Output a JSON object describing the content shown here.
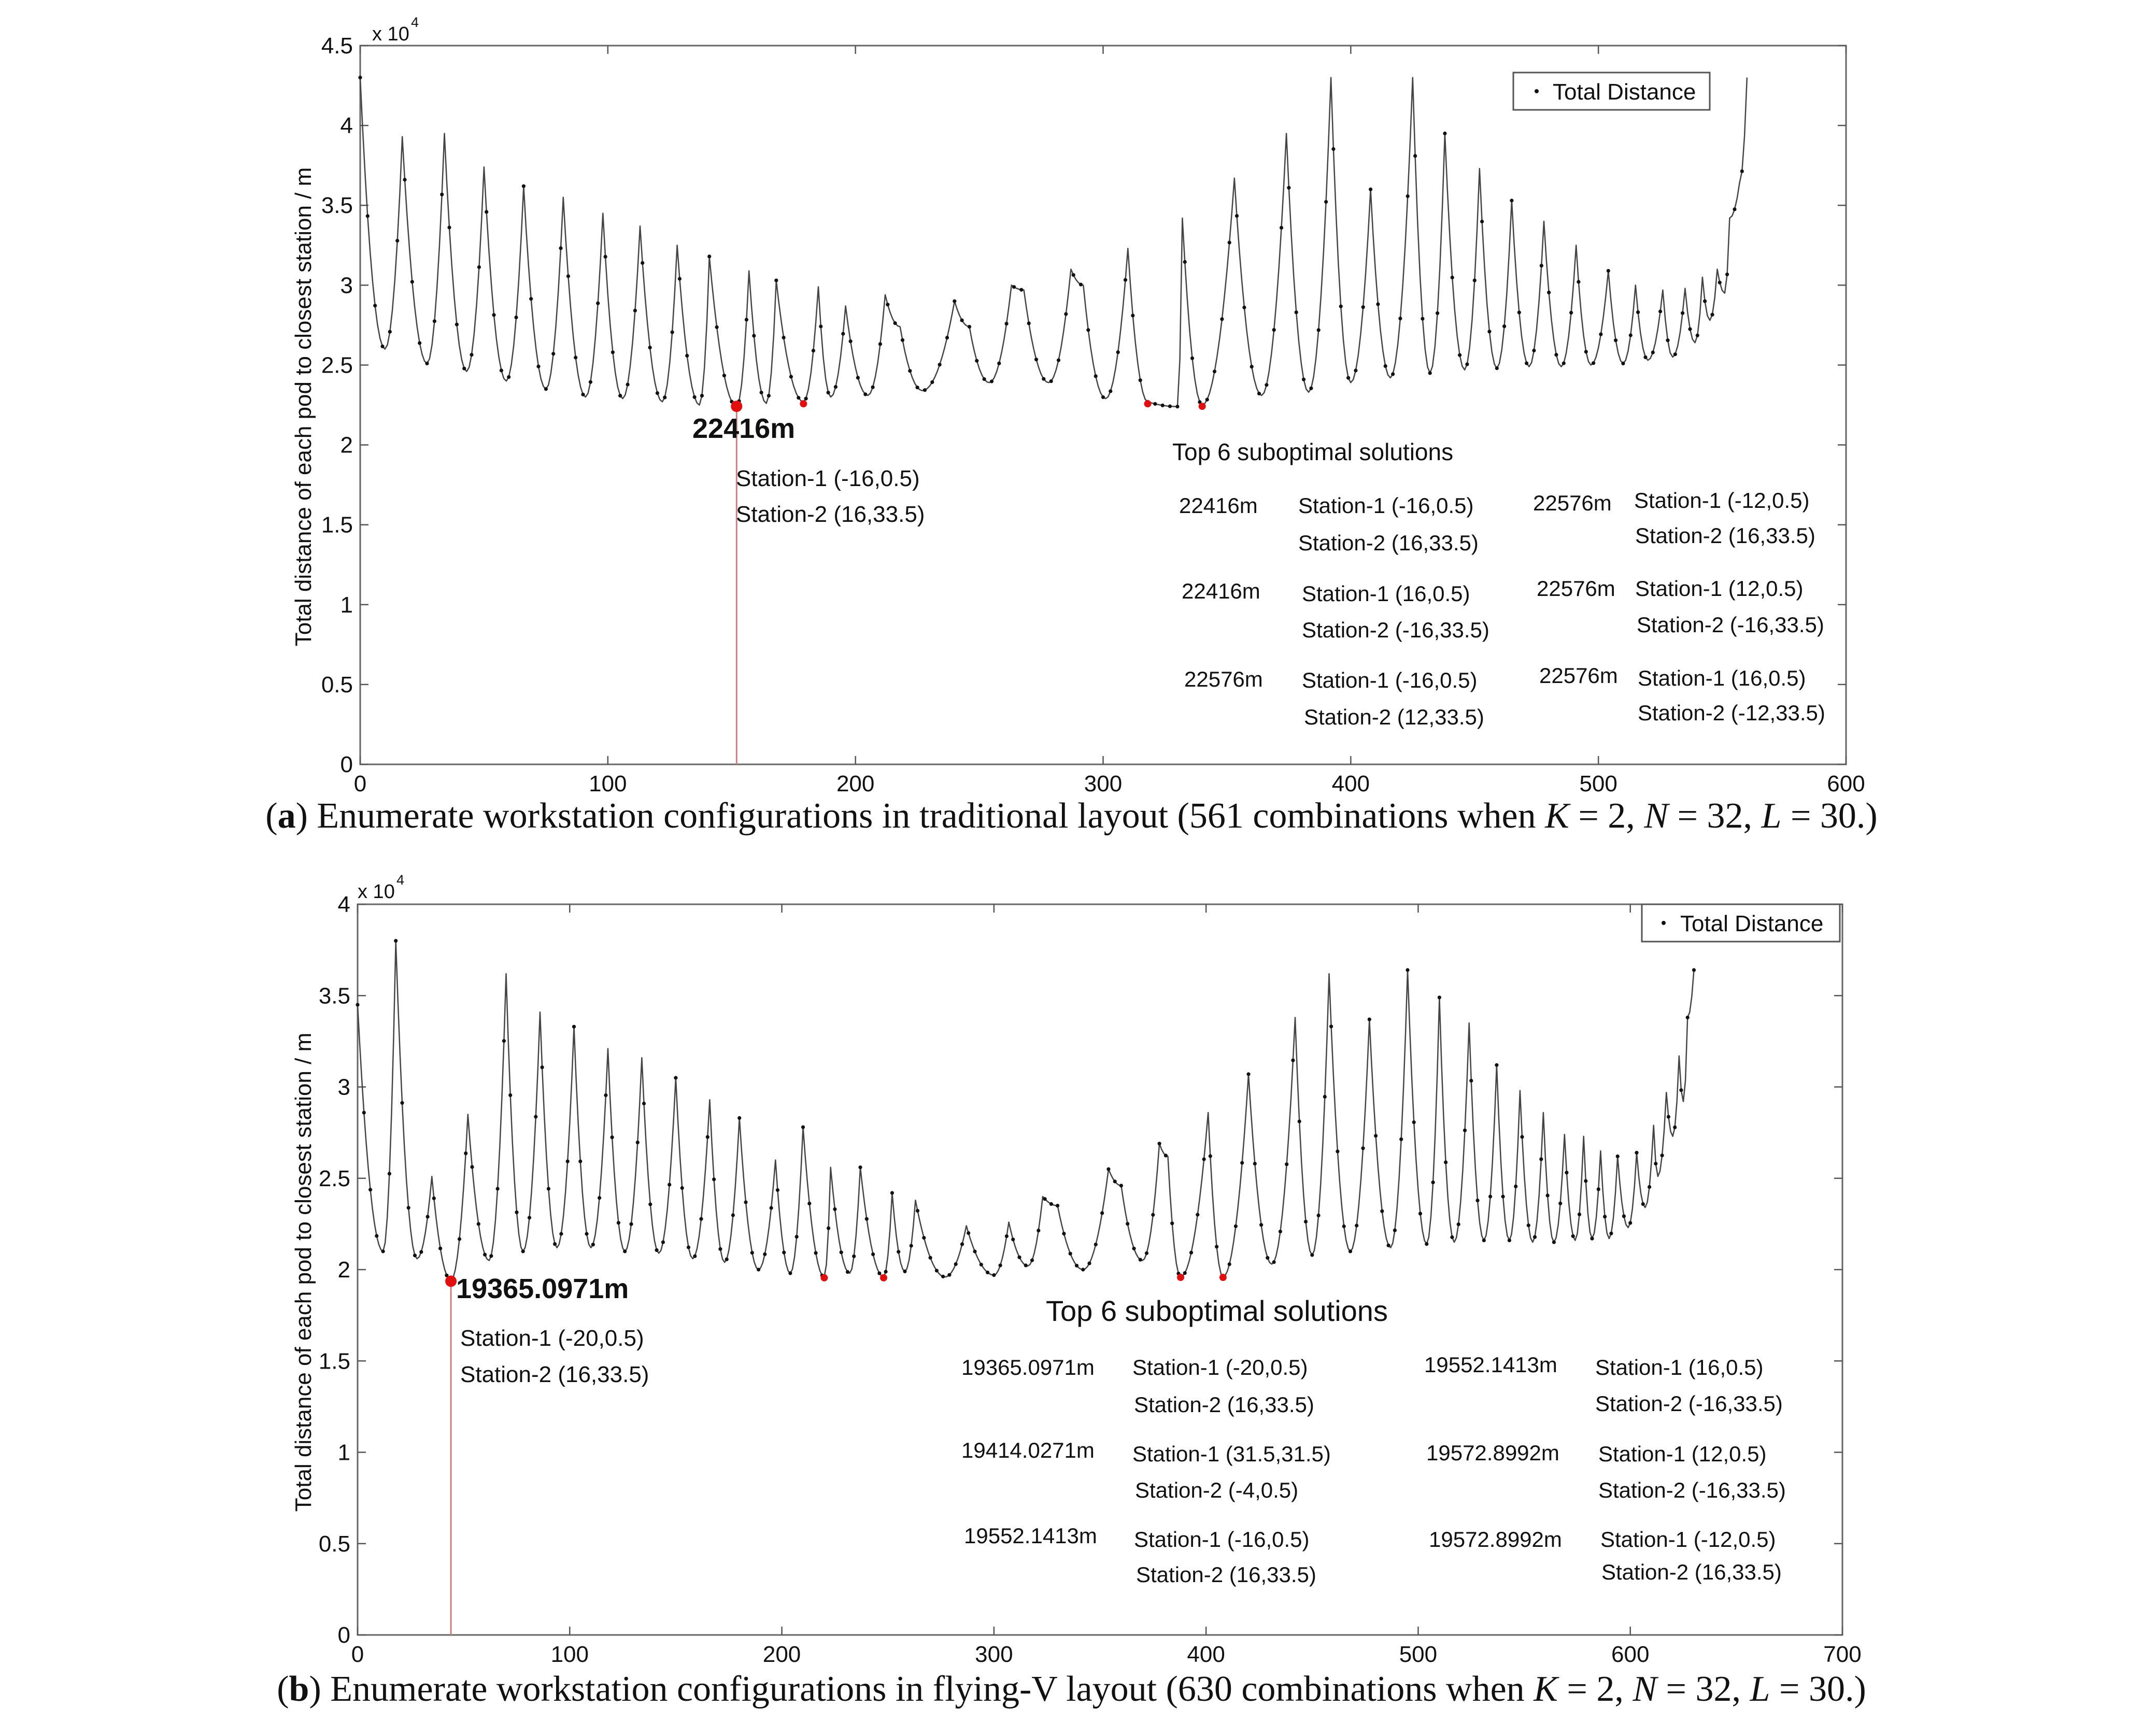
{
  "chart_data": [
    {
      "type": "line",
      "panel": "a",
      "legend": "Total Distance",
      "legend_position": "top-right",
      "ylabel": "Total distance of each pod to closest station / m",
      "xlabel": "",
      "y_scale_label": "x 10",
      "y_scale_exponent": "4",
      "xlim": [
        0,
        600
      ],
      "ylim": [
        0,
        4.5
      ],
      "x_ticks": [
        "0",
        "100",
        "200",
        "300",
        "400",
        "500",
        "600"
      ],
      "y_ticks": [
        "0",
        "0.5",
        "1",
        "1.5",
        "2",
        "2.5",
        "3",
        "3.5",
        "4",
        "4.5"
      ],
      "x_tick_values": [
        0,
        100,
        200,
        300,
        400,
        500,
        600
      ],
      "y_tick_values": [
        0,
        0.5,
        1,
        1.5,
        2,
        2.5,
        3,
        3.5,
        4,
        4.5
      ],
      "n_points": 561,
      "x_end": 560,
      "peaks": [
        [
          0,
          4.3
        ],
        [
          17,
          3.93
        ],
        [
          34,
          3.95
        ],
        [
          50,
          3.74
        ],
        [
          66,
          3.62
        ],
        [
          82,
          3.55
        ],
        [
          98,
          3.45
        ],
        [
          113,
          3.37
        ],
        [
          128,
          3.25
        ],
        [
          141,
          3.18
        ],
        [
          157,
          3.09
        ],
        [
          168,
          3.03
        ],
        [
          185,
          2.99
        ],
        [
          196,
          2.87
        ],
        [
          212,
          2.94
        ],
        [
          218,
          2.74
        ],
        [
          240,
          2.9
        ],
        [
          246,
          2.74
        ],
        [
          263,
          3.0
        ],
        [
          268,
          2.97
        ],
        [
          287,
          3.1
        ],
        [
          292,
          3.0
        ],
        [
          310,
          3.23
        ],
        [
          332,
          3.42
        ],
        [
          353,
          3.67
        ],
        [
          374,
          3.95
        ],
        [
          392,
          4.3
        ],
        [
          408,
          3.6
        ],
        [
          425,
          4.3
        ],
        [
          438,
          3.95
        ],
        [
          452,
          3.73
        ],
        [
          465,
          3.53
        ],
        [
          478,
          3.4
        ],
        [
          491,
          3.25
        ],
        [
          504,
          3.09
        ],
        [
          515,
          3.0
        ],
        [
          526,
          2.97
        ],
        [
          535,
          2.98
        ],
        [
          542,
          3.05
        ],
        [
          548,
          3.1
        ],
        [
          553,
          3.42
        ],
        [
          557,
          3.64
        ],
        [
          560,
          4.3
        ]
      ],
      "troughs": [
        [
          10,
          2.6
        ],
        [
          27,
          2.51
        ],
        [
          43,
          2.46
        ],
        [
          59,
          2.4
        ],
        [
          75,
          2.35
        ],
        [
          91,
          2.3
        ],
        [
          106,
          2.29
        ],
        [
          122,
          2.27
        ],
        [
          137,
          2.25
        ],
        [
          152,
          2.24
        ],
        [
          164,
          2.26
        ],
        [
          179,
          2.27
        ],
        [
          190,
          2.3
        ],
        [
          205,
          2.31
        ],
        [
          227,
          2.34
        ],
        [
          254,
          2.39
        ],
        [
          278,
          2.39
        ],
        [
          301,
          2.29
        ],
        [
          318,
          2.27
        ],
        [
          330,
          2.24
        ],
        [
          340,
          2.25
        ],
        [
          364,
          2.31
        ],
        [
          383,
          2.33
        ],
        [
          400,
          2.39
        ],
        [
          416,
          2.42
        ],
        [
          432,
          2.45
        ],
        [
          446,
          2.47
        ],
        [
          459,
          2.48
        ],
        [
          472,
          2.49
        ],
        [
          485,
          2.49
        ],
        [
          497,
          2.5
        ],
        [
          510,
          2.51
        ],
        [
          520,
          2.53
        ],
        [
          530,
          2.55
        ],
        [
          539,
          2.64
        ],
        [
          545,
          2.78
        ],
        [
          551,
          2.95
        ]
      ],
      "highlight_points": [
        {
          "x": 152,
          "y": 2.2416,
          "major": true
        },
        {
          "x": 179,
          "y": 2.2576,
          "major": false
        },
        {
          "x": 318,
          "y": 2.2576,
          "major": false
        },
        {
          "x": 340,
          "y": 2.2416,
          "major": false
        }
      ],
      "best_value_label": "22416m",
      "best_station_1": "Station-1 (-16,0.5)",
      "best_station_2": "Station-2 (16,33.5)",
      "table_title": "Top 6 suboptimal solutions",
      "solutions": [
        {
          "dist": "22416m",
          "s1": "Station-1 (-16,0.5)",
          "s2": "Station-2 (16,33.5)"
        },
        {
          "dist": "22576m",
          "s1": "Station-1 (-12,0.5)",
          "s2": "Station-2 (16,33.5)"
        },
        {
          "dist": "22416m",
          "s1": "Station-1 (16,0.5)",
          "s2": "Station-2 (-16,33.5)"
        },
        {
          "dist": "22576m",
          "s1": "Station-1 (12,0.5)",
          "s2": "Station-2 (-16,33.5)"
        },
        {
          "dist": "22576m",
          "s1": "Station-1 (-16,0.5)",
          "s2": "Station-2 (12,33.5)"
        },
        {
          "dist": "22576m",
          "s1": "Station-1 (16,0.5)",
          "s2": "Station-2 (-12,33.5)"
        }
      ]
    },
    {
      "type": "line",
      "panel": "b",
      "legend": "Total Distance",
      "legend_position": "top-right",
      "ylabel": "Total distance of each pod to closest station / m",
      "xlabel": "",
      "y_scale_label": "x 10",
      "y_scale_exponent": "4",
      "xlim": [
        0,
        700
      ],
      "ylim": [
        0,
        4
      ],
      "x_ticks": [
        "0",
        "100",
        "200",
        "300",
        "400",
        "500",
        "600",
        "700"
      ],
      "y_ticks": [
        "0",
        "0.5",
        "1",
        "1.5",
        "2",
        "2.5",
        "3",
        "3.5",
        "4"
      ],
      "x_tick_values": [
        0,
        100,
        200,
        300,
        400,
        500,
        600,
        700
      ],
      "y_tick_values": [
        0,
        0.5,
        1,
        1.5,
        2,
        2.5,
        3,
        3.5,
        4
      ],
      "n_points": 630,
      "x_end": 630,
      "peaks": [
        [
          0,
          3.45
        ],
        [
          18,
          3.8
        ],
        [
          35,
          2.51
        ],
        [
          52,
          2.85
        ],
        [
          70,
          3.62
        ],
        [
          86,
          3.41
        ],
        [
          102,
          3.33
        ],
        [
          118,
          3.21
        ],
        [
          134,
          3.16
        ],
        [
          150,
          3.05
        ],
        [
          166,
          2.93
        ],
        [
          180,
          2.83
        ],
        [
          197,
          2.6
        ],
        [
          210,
          2.78
        ],
        [
          223,
          2.56
        ],
        [
          237,
          2.56
        ],
        [
          252,
          2.42
        ],
        [
          263,
          2.38
        ],
        [
          287,
          2.24
        ],
        [
          307,
          2.26
        ],
        [
          323,
          2.4
        ],
        [
          330,
          2.35
        ],
        [
          354,
          2.55
        ],
        [
          360,
          2.46
        ],
        [
          378,
          2.69
        ],
        [
          382,
          2.62
        ],
        [
          401,
          2.86
        ],
        [
          420,
          3.07
        ],
        [
          442,
          3.38
        ],
        [
          458,
          3.62
        ],
        [
          477,
          3.37
        ],
        [
          495,
          3.64
        ],
        [
          510,
          3.49
        ],
        [
          524,
          3.35
        ],
        [
          537,
          3.12
        ],
        [
          548,
          2.98
        ],
        [
          559,
          2.86
        ],
        [
          569,
          2.74
        ],
        [
          578,
          2.73
        ],
        [
          586,
          2.65
        ],
        [
          594,
          2.62
        ],
        [
          603,
          2.64
        ],
        [
          611,
          2.79
        ],
        [
          617,
          2.97
        ],
        [
          623,
          3.17
        ],
        [
          627,
          3.38
        ],
        [
          630,
          3.64
        ]
      ],
      "troughs": [
        [
          12,
          2.1
        ],
        [
          28,
          2.06
        ],
        [
          44,
          1.94
        ],
        [
          62,
          2.05
        ],
        [
          78,
          2.1
        ],
        [
          94,
          2.12
        ],
        [
          110,
          2.12
        ],
        [
          126,
          2.1
        ],
        [
          142,
          2.09
        ],
        [
          158,
          2.06
        ],
        [
          173,
          2.04
        ],
        [
          189,
          2.0
        ],
        [
          204,
          1.98
        ],
        [
          220,
          1.96
        ],
        [
          232,
          1.98
        ],
        [
          248,
          1.96
        ],
        [
          258,
          1.99
        ],
        [
          277,
          1.96
        ],
        [
          300,
          1.97
        ],
        [
          316,
          2.02
        ],
        [
          342,
          2.0
        ],
        [
          370,
          2.05
        ],
        [
          388,
          1.96
        ],
        [
          408,
          1.96
        ],
        [
          431,
          2.03
        ],
        [
          450,
          2.08
        ],
        [
          468,
          2.1
        ],
        [
          487,
          2.12
        ],
        [
          504,
          2.14
        ],
        [
          517,
          2.15
        ],
        [
          531,
          2.16
        ],
        [
          543,
          2.16
        ],
        [
          554,
          2.15
        ],
        [
          564,
          2.15
        ],
        [
          574,
          2.16
        ],
        [
          582,
          2.17
        ],
        [
          590,
          2.17
        ],
        [
          599,
          2.23
        ],
        [
          607,
          2.34
        ],
        [
          613,
          2.51
        ],
        [
          620,
          2.73
        ],
        [
          625,
          2.92
        ]
      ],
      "highlight_points": [
        {
          "x": 44,
          "y": 1.9365,
          "major": true
        },
        {
          "x": 220,
          "y": 1.9552,
          "major": false
        },
        {
          "x": 248,
          "y": 1.9552,
          "major": false
        },
        {
          "x": 388,
          "y": 1.9573,
          "major": false
        },
        {
          "x": 408,
          "y": 1.9573,
          "major": false
        }
      ],
      "best_value_label": "19365.0971m",
      "best_station_1": "Station-1 (-20,0.5)",
      "best_station_2": "Station-2 (16,33.5)",
      "table_title": "Top 6 suboptimal solutions",
      "solutions": [
        {
          "dist": "19365.0971m",
          "s1": "Station-1 (-20,0.5)",
          "s2": "Station-2 (16,33.5)"
        },
        {
          "dist": "19552.1413m",
          "s1": "Station-1 (16,0.5)",
          "s2": "Station-2 (-16,33.5)"
        },
        {
          "dist": "19414.0271m",
          "s1": "Station-1 (31.5,31.5)",
          "s2": "Station-2 (-4,0.5)"
        },
        {
          "dist": "19572.8992m",
          "s1": "Station-1 (12,0.5)",
          "s2": "Station-2 (-16,33.5)"
        },
        {
          "dist": "19552.1413m",
          "s1": "Station-1 (-16,0.5)",
          "s2": "Station-2 (16,33.5)"
        },
        {
          "dist": "19572.8992m",
          "s1": "Station-1 (-12,0.5)",
          "s2": "Station-2 (16,33.5)"
        }
      ]
    }
  ],
  "captions": {
    "a": {
      "tag": "a",
      "text": "Enumerate workstation configurations in traditional layout (561 combinations when",
      "k": "K",
      "k_val": "= 2,",
      "n": "N",
      "n_val": "= 32,",
      "l": "L",
      "l_val": "= 30.)"
    },
    "b": {
      "tag": "b",
      "text": "Enumerate workstation configurations in flying-V layout (630 combinations when",
      "k": "K",
      "k_val": "= 2,",
      "n": "N",
      "n_val": "= 32,",
      "l": "L",
      "l_val": "= 30.)"
    }
  }
}
